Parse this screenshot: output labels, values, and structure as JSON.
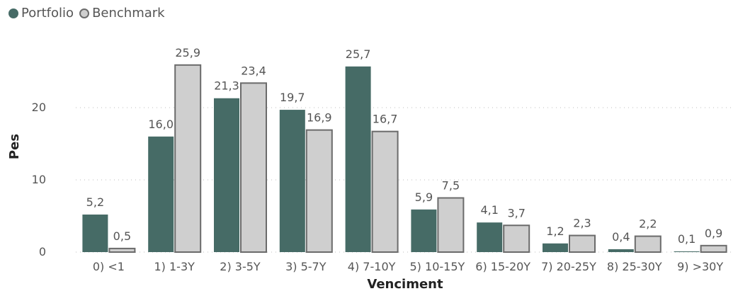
{
  "legend": {
    "items": [
      {
        "name": "Portfolio",
        "color": "#466b66"
      },
      {
        "name": "Benchmark",
        "color": "#cfcfcf",
        "border": "#6b6b6b"
      }
    ]
  },
  "chart_data": {
    "type": "bar",
    "categories": [
      "0) <1",
      "1) 1-3Y",
      "2) 3-5Y",
      "3) 5-7Y",
      "4) 7-10Y",
      "5) 10-15Y",
      "6) 15-20Y",
      "7) 20-25Y",
      "8) 25-30Y",
      "9) >30Y"
    ],
    "series": [
      {
        "name": "Portfolio",
        "values": [
          5.2,
          16.0,
          21.3,
          19.7,
          25.7,
          5.9,
          4.1,
          1.2,
          0.4,
          0.1
        ],
        "labels": [
          "5,2",
          "16,0",
          "21,3",
          "19,7",
          "25,7",
          "5,9",
          "4,1",
          "1,2",
          "0,4",
          "0,1"
        ],
        "color": "#466b66"
      },
      {
        "name": "Benchmark",
        "values": [
          0.5,
          25.9,
          23.4,
          16.9,
          16.7,
          7.5,
          3.7,
          2.3,
          2.2,
          0.9
        ],
        "labels": [
          "0,5",
          "25,9",
          "23,4",
          "16,9",
          "16,7",
          "7,5",
          "3,7",
          "2,3",
          "2,2",
          "0,9"
        ],
        "color": "#cfcfcf",
        "border": "#6b6b6b"
      }
    ],
    "xlabel": "Venciment",
    "ylabel": "Pes",
    "yticks": [
      0,
      10,
      20
    ],
    "ytick_labels": [
      "0",
      "10",
      "20"
    ],
    "ylim": [
      0,
      28
    ],
    "grid": true,
    "legend_position": "top-left"
  }
}
